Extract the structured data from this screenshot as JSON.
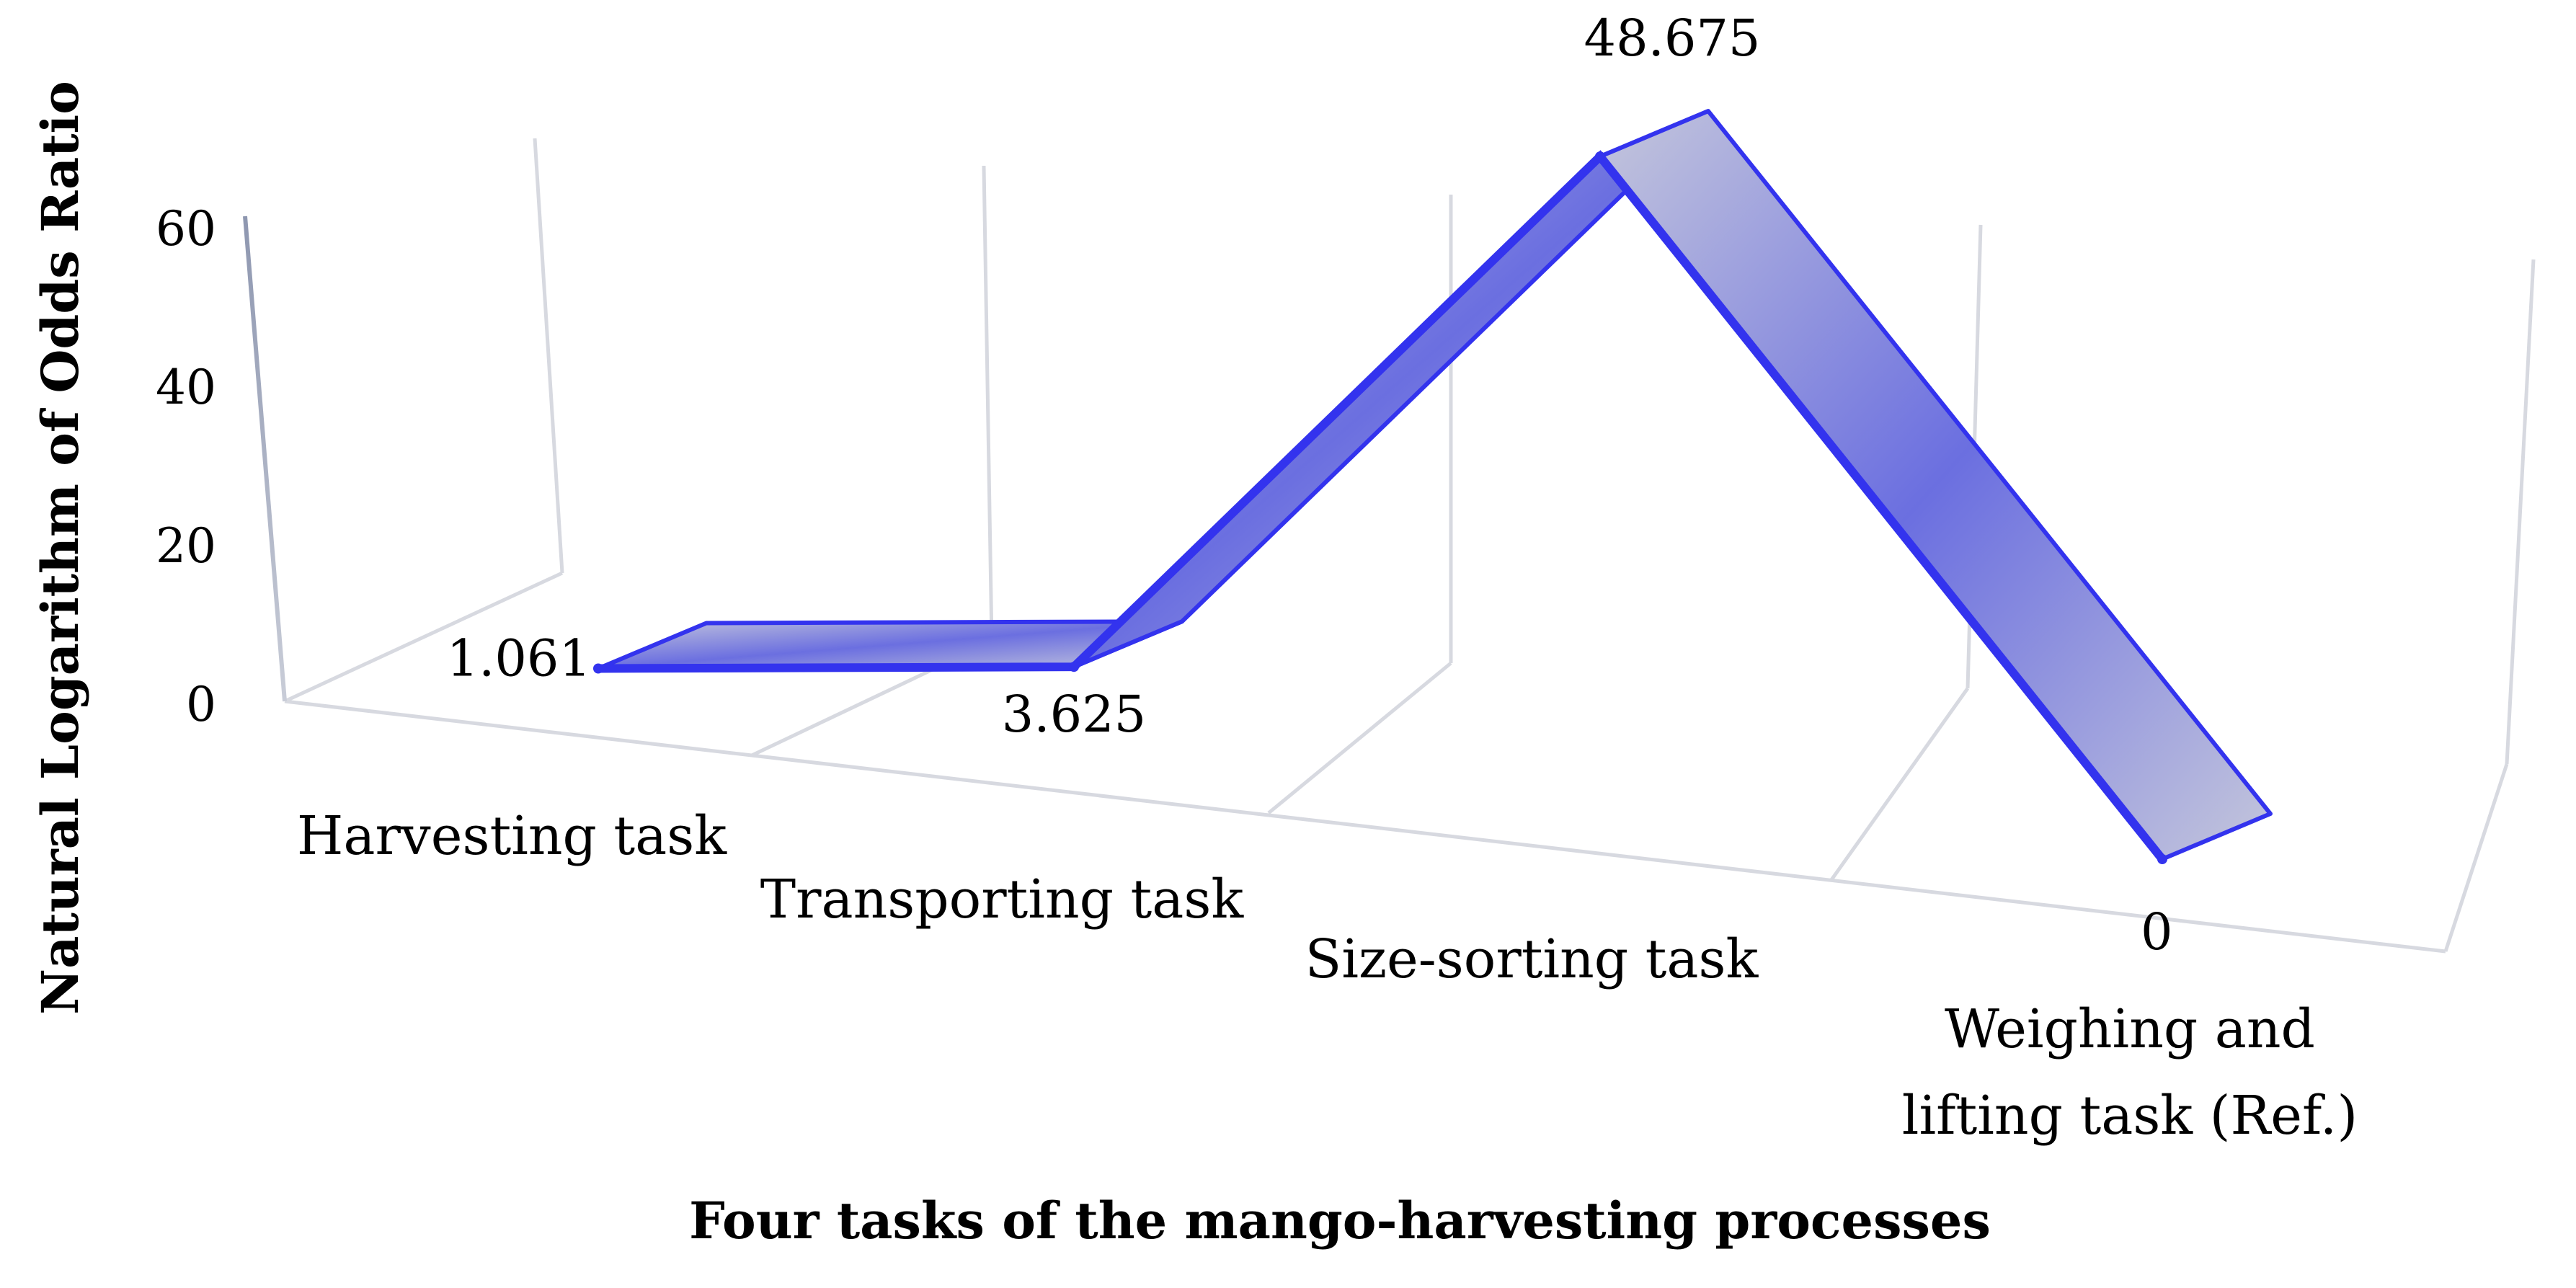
{
  "chart_data": {
    "type": "line",
    "title": "",
    "xlabel": "Four tasks of the mango-harvesting processes",
    "ylabel": "Natural Logarithm of Odds Ratio",
    "categories": [
      "Harvesting task",
      "Transporting task",
      "Size-sorting task",
      "Weighing and lifting task (Ref.)"
    ],
    "category_lines": [
      [
        "Harvesting task"
      ],
      [
        "Transporting task"
      ],
      [
        "Size-sorting task"
      ],
      [
        "Weighing and",
        "lifting task (Ref.)"
      ]
    ],
    "values": [
      1.061,
      3.625,
      48.675,
      0
    ],
    "value_labels": [
      "1.061",
      "3.625",
      "48.675",
      "0"
    ],
    "yticks": [
      0,
      20,
      40,
      60
    ],
    "ylim": [
      0,
      60
    ],
    "grid": true,
    "legend": "none",
    "projection": "3d",
    "colors": {
      "ribbon": "#3333ee",
      "ribbon_fill_light": "#c4c6dc",
      "ribbon_fill_mid": "#6b6fe0",
      "grid": "#d7d9e0"
    }
  }
}
